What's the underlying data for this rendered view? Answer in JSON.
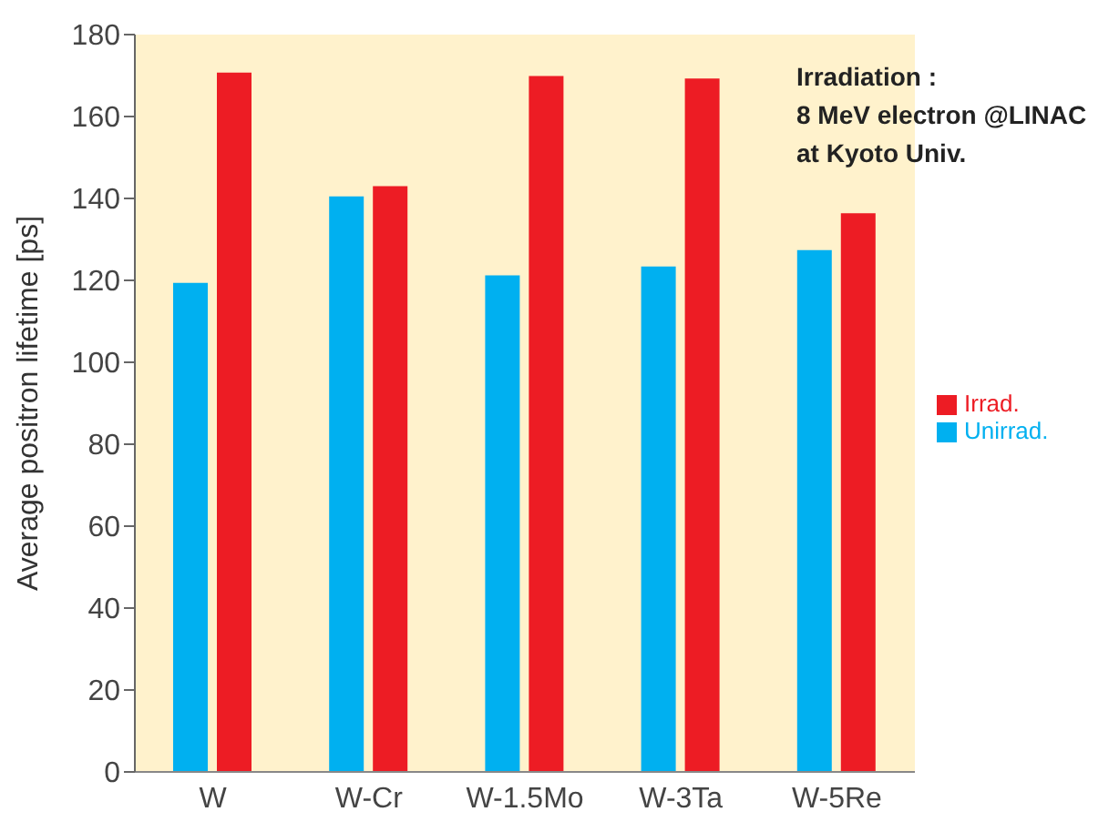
{
  "chart_data": {
    "type": "bar",
    "ylabel": "Average positron lifetime [ps]",
    "categories": [
      "W",
      "W-Cr",
      "W-1.5Mo",
      "W-3Ta",
      "W-5Re"
    ],
    "series": [
      {
        "name": "Unirrad.",
        "color": "#00b0f0",
        "values": [
          119.4,
          140.5,
          121.2,
          123.4,
          127.4
        ]
      },
      {
        "name": "Irrad.",
        "color": "#ed1c24",
        "values": [
          170.7,
          143,
          169.9,
          169.3,
          136.4
        ]
      }
    ],
    "ylim": [
      0,
      180
    ],
    "yticks": [
      0,
      20,
      40,
      60,
      80,
      100,
      120,
      140,
      160,
      180
    ],
    "grid": false,
    "legend": "right",
    "annotations": [
      "Irradiation :\n8 MeV electron @LINAC\nat Kyoto Univ."
    ]
  }
}
